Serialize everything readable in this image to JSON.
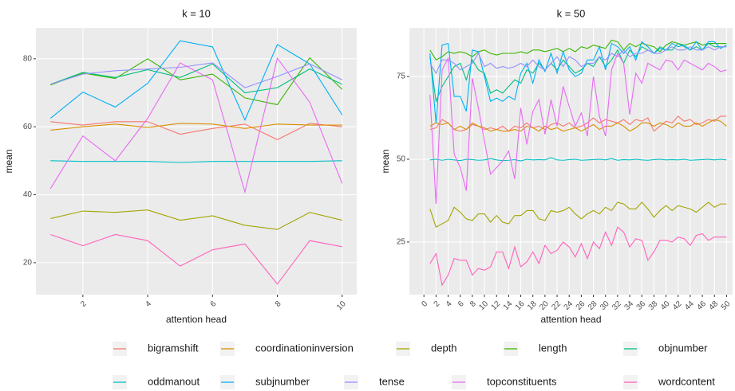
{
  "chart_data": {
    "type": "line",
    "series": [
      {
        "name": "bigramshift",
        "color": "#F8766D"
      },
      {
        "name": "coordinationinversion",
        "color": "#D89000"
      },
      {
        "name": "depth",
        "color": "#A3A500"
      },
      {
        "name": "length",
        "color": "#39B600"
      },
      {
        "name": "objnumber",
        "color": "#00BF7D"
      },
      {
        "name": "oddmanout",
        "color": "#00BFC4"
      },
      {
        "name": "subjnumber",
        "color": "#00B0F6"
      },
      {
        "name": "tense",
        "color": "#9590FF"
      },
      {
        "name": "topconstituents",
        "color": "#E76BF3"
      },
      {
        "name": "wordcontent",
        "color": "#FF62BC"
      }
    ],
    "panels": [
      {
        "title": "k = 10",
        "x_label": "attention head",
        "y_label": "mean",
        "x": [
          1,
          2,
          3,
          4,
          5,
          6,
          7,
          8,
          9,
          10
        ],
        "xlim": [
          0.55,
          10.45
        ],
        "ylim": [
          10.6,
          89.1
        ],
        "xticks": [
          2,
          4,
          6,
          8,
          10
        ],
        "yticks": [
          20,
          40,
          60,
          80
        ],
        "grid": true,
        "series": [
          {
            "values": [
              61.5,
              60.5,
              61.5,
              61.5,
              57.8,
              59.5,
              60.8,
              56.2,
              61,
              60
            ]
          },
          {
            "values": [
              59,
              60,
              60.8,
              59.8,
              61,
              60.8,
              59.5,
              60.8,
              60.5,
              60.5
            ]
          },
          {
            "values": [
              33,
              35.2,
              34.8,
              35.5,
              32.5,
              33.8,
              31,
              29.8,
              34.8,
              32.5
            ]
          },
          {
            "values": [
              72.3,
              75.8,
              74.2,
              80,
              73.8,
              75.5,
              68.5,
              66.5,
              80.3,
              71
            ]
          },
          {
            "values": [
              72.5,
              76,
              74.5,
              76.8,
              74.5,
              78.5,
              70,
              71.5,
              77,
              72.5
            ]
          },
          {
            "values": [
              50,
              49.8,
              49.8,
              49.8,
              49.5,
              49.8,
              49.8,
              49.8,
              49.8,
              50
            ]
          },
          {
            "values": [
              62.5,
              70.2,
              65.8,
              72.8,
              85.3,
              83.5,
              62,
              84.2,
              78.5,
              63.5
            ]
          },
          {
            "values": [
              72.5,
              75.5,
              76.5,
              77,
              77.5,
              78.8,
              71.5,
              74.8,
              78.5,
              73.8
            ]
          },
          {
            "values": [
              41.8,
              57.3,
              50,
              62.5,
              78.8,
              73.8,
              40.8,
              80.2,
              67.2,
              43.3
            ]
          },
          {
            "values": [
              28.3,
              25,
              28.3,
              26.5,
              19,
              23.8,
              25.5,
              13.7,
              26.5,
              24.7
            ]
          }
        ]
      },
      {
        "title": "k = 50",
        "x_label": "attention head",
        "y_label": "mean",
        "x": [
          1,
          2,
          3,
          4,
          5,
          6,
          7,
          8,
          9,
          10,
          11,
          12,
          13,
          14,
          15,
          16,
          17,
          18,
          19,
          20,
          21,
          22,
          23,
          24,
          25,
          26,
          27,
          28,
          29,
          30,
          31,
          32,
          33,
          34,
          35,
          36,
          37,
          38,
          39,
          40,
          41,
          42,
          43,
          44,
          45,
          46,
          47,
          48,
          49,
          50
        ],
        "xlim": [
          -2.4,
          51
        ],
        "ylim": [
          9.1,
          89.7
        ],
        "xticks": [
          0,
          2,
          4,
          6,
          8,
          10,
          12,
          14,
          16,
          18,
          20,
          22,
          24,
          26,
          28,
          30,
          32,
          34,
          36,
          38,
          40,
          42,
          44,
          46,
          48,
          50
        ],
        "yticks": [
          25,
          50,
          75
        ],
        "grid": true,
        "series": [
          {
            "values": [
              59,
              59.5,
              62,
              61,
              59,
              58.5,
              59,
              60.5,
              60,
              59,
              59.5,
              59,
              60,
              58.5,
              60,
              59.5,
              61,
              59.5,
              60,
              59,
              60.5,
              61,
              60,
              61,
              59.5,
              60,
              61,
              62.5,
              61,
              62,
              61.5,
              61,
              62,
              60.5,
              62,
              61.5,
              62.5,
              58.5,
              60,
              61.5,
              61,
              63,
              61.5,
              62,
              60.5,
              61,
              62,
              61.5,
              63,
              63
            ]
          },
          {
            "values": [
              60,
              61,
              60.5,
              61,
              59,
              60,
              59,
              61,
              60,
              59.5,
              58.5,
              59,
              58.5,
              58.5,
              59,
              58.5,
              60,
              59.5,
              58.5,
              60,
              59,
              59.5,
              58.5,
              59,
              59.5,
              58.5,
              59.5,
              60.5,
              59,
              60,
              60,
              61,
              60,
              58.5,
              59.5,
              61,
              61,
              60,
              61,
              60.5,
              59.5,
              61,
              60,
              60,
              61,
              60,
              61,
              62,
              61.5,
              60
            ]
          },
          {
            "values": [
              35,
              29.5,
              30.5,
              31.5,
              35.5,
              34,
              32,
              31.5,
              33.5,
              33.5,
              31,
              33,
              31,
              30.5,
              33,
              33,
              34.5,
              34.5,
              32,
              31.5,
              34.5,
              34,
              34.5,
              35.5,
              33.5,
              32,
              33.5,
              34.5,
              33.5,
              35.5,
              34.5,
              37,
              36.5,
              35,
              35,
              37,
              35,
              32.5,
              34.5,
              36,
              34.5,
              36,
              35.5,
              35,
              34,
              35.5,
              37,
              35.5,
              36.5,
              36.5
            ]
          },
          {
            "values": [
              83,
              80,
              81,
              82.5,
              82,
              82.5,
              82,
              81,
              82.5,
              83,
              82,
              81.5,
              82,
              82,
              82,
              82.5,
              82,
              83,
              83,
              82.5,
              83,
              83.5,
              82.5,
              83.5,
              82.5,
              84,
              83.5,
              84.5,
              84,
              83.5,
              86,
              85.5,
              83,
              85,
              84,
              85,
              84.5,
              84,
              82.5,
              84.5,
              85.5,
              85,
              84.5,
              85,
              85.5,
              84.5,
              85,
              85,
              85,
              85
            ]
          },
          {
            "values": [
              81,
              67.5,
              72,
              75,
              78,
              79,
              74,
              80,
              77,
              76,
              70,
              71,
              70,
              72,
              74,
              73,
              77,
              76,
              79,
              77,
              79,
              77,
              80,
              78,
              76,
              77,
              79,
              78,
              81,
              78,
              80,
              83,
              79,
              83,
              81,
              84,
              83,
              82,
              84,
              83,
              83,
              85,
              84,
              83,
              84,
              83,
              85,
              84,
              84,
              84
            ]
          },
          {
            "values": [
              49.8,
              50,
              49.7,
              50,
              49.8,
              49.6,
              50,
              49.9,
              49.7,
              49.8,
              50.2,
              49.8,
              49.6,
              49.7,
              49.9,
              49.5,
              50,
              49.8,
              49.9,
              49.8,
              50.5,
              49.8,
              49.7,
              49.9,
              50,
              49.7,
              49.8,
              49.9,
              50,
              49.8,
              50.2,
              49.7,
              49.9,
              49.8,
              50,
              49.8,
              49.7,
              49.9,
              50,
              49.8,
              49.9,
              49.8,
              50,
              49.7,
              49.8,
              49.9,
              50,
              49.8,
              50,
              49.8
            ]
          },
          {
            "values": [
              82,
              61,
              84.5,
              85,
              69,
              69,
              64.5,
              83,
              82.5,
              75,
              67.5,
              68.5,
              67.5,
              69,
              68,
              76,
              79,
              73,
              80,
              76.5,
              82,
              76,
              82.5,
              77,
              75,
              76,
              80,
              80,
              84,
              77,
              85,
              84,
              82,
              84,
              80,
              85.5,
              84,
              82,
              83.5,
              83,
              85,
              84,
              84.5,
              83,
              85.5,
              83,
              85.5,
              85.5,
              83.5,
              84.5
            ]
          },
          {
            "values": [
              79,
              76,
              80,
              80,
              79,
              77,
              78,
              79,
              82,
              78,
              79,
              77.5,
              78,
              77.5,
              78,
              79,
              78,
              80,
              78,
              77,
              79,
              81,
              78,
              81,
              80,
              78,
              79,
              79,
              81,
              80,
              82,
              81,
              83,
              81,
              82,
              82,
              83,
              82,
              82,
              83,
              84,
              83,
              83,
              84,
              83,
              83,
              84,
              83,
              84,
              84
            ]
          },
          {
            "values": [
              69.5,
              36.5,
              77,
              80.5,
              51.5,
              47.5,
              40.5,
              74.5,
              65.5,
              55.5,
              45.5,
              47.5,
              49.5,
              52.5,
              44,
              65.5,
              54.5,
              64.5,
              68,
              57.5,
              68,
              60,
              72,
              66,
              60,
              64,
              57,
              75,
              63,
              57,
              77,
              82,
              79,
              63.5,
              76,
              73,
              79,
              78,
              77,
              80,
              79.5,
              77,
              80,
              79,
              78,
              77,
              79,
              78,
              76.5,
              77
            ]
          },
          {
            "values": [
              18.5,
              21.5,
              12,
              15,
              20,
              19.5,
              19.5,
              15,
              17,
              16.5,
              17.5,
              22,
              22,
              17,
              23.5,
              17.5,
              19,
              22,
              18.5,
              24,
              21.5,
              22.5,
              25,
              23.5,
              20.5,
              24.5,
              20,
              25,
              23,
              28,
              24,
              29.5,
              28,
              23.5,
              26,
              25.5,
              19.5,
              22,
              25.5,
              25.5,
              25,
              26.5,
              26,
              24,
              27,
              27.5,
              25.5,
              26.5,
              26.5,
              26.5
            ]
          }
        ]
      }
    ]
  }
}
